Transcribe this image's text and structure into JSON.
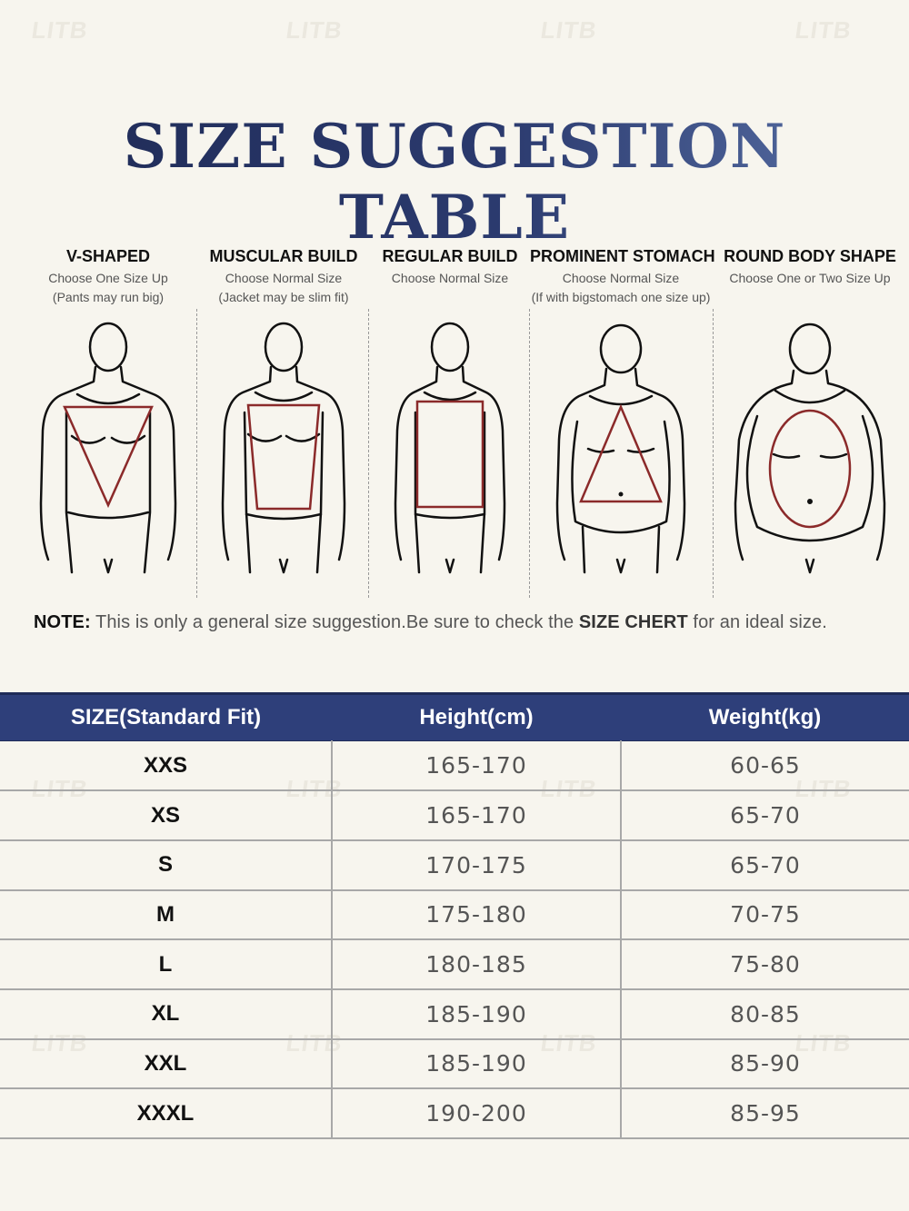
{
  "watermark": "LITB",
  "title": "SIZE SUGGESTION TABLE",
  "body_types": [
    {
      "heading": "V-SHAPED",
      "line1": "Choose One Size Up",
      "line2": "(Pants may run big)",
      "shape": "inverted-triangle"
    },
    {
      "heading": "MUSCULAR BUILD",
      "line1": "Choose Normal Size",
      "line2": "(Jacket may be slim fit)",
      "shape": "trapezoid"
    },
    {
      "heading": "REGULAR BUILD",
      "line1": "Choose Normal Size",
      "line2": "",
      "shape": "rectangle"
    },
    {
      "heading": "PROMINENT STOMACH",
      "line1": "Choose Normal Size",
      "line2": "(If with bigstomach one size up)",
      "shape": "triangle"
    },
    {
      "heading": "ROUND BODY SHAPE",
      "line1": "Choose One or Two Size Up",
      "line2": "",
      "shape": "oval"
    }
  ],
  "note": {
    "label": "NOTE:",
    "text_before": " This is only a general size suggestion.Be sure to check the ",
    "emphasis": "SIZE CHERT",
    "text_after": " for an ideal size."
  },
  "table": {
    "headers": [
      "SIZE(Standard Fit)",
      "Height(cm)",
      "Weight(kg)"
    ],
    "rows": [
      [
        "XXS",
        "165-170",
        "60-65"
      ],
      [
        "XS",
        "165-170",
        "65-70"
      ],
      [
        "S",
        "170-175",
        "65-70"
      ],
      [
        "M",
        "175-180",
        "70-75"
      ],
      [
        "L",
        "180-185",
        "75-80"
      ],
      [
        "XL",
        "185-190",
        "80-85"
      ],
      [
        "XXL",
        "185-190",
        "85-90"
      ],
      [
        "XXXL",
        "190-200",
        "85-95"
      ]
    ]
  },
  "colors": {
    "title_dark": "#1e2a55",
    "title_light": "#5a72a8",
    "header_bg": "#2e3f7a",
    "shape_stroke": "#8b2a2a",
    "background": "#f7f5ee"
  }
}
